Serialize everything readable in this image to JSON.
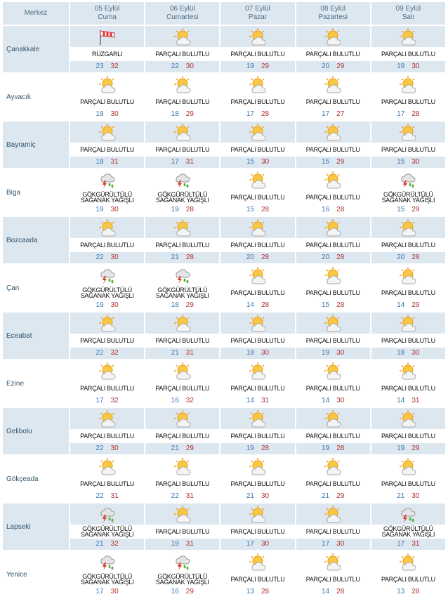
{
  "header": {
    "corner": "Merkez",
    "days": [
      {
        "date": "05 Eylül",
        "day": "Cuma"
      },
      {
        "date": "06 Eylül",
        "day": "Cumartesi"
      },
      {
        "date": "07 Eylül",
        "day": "Pazar"
      },
      {
        "date": "08 Eylül",
        "day": "Pazartesi"
      },
      {
        "date": "09 Eylül",
        "day": "Salı"
      }
    ]
  },
  "rows": [
    {
      "city": "Çanakkale",
      "cells": [
        {
          "condition": "RÜZGARLI",
          "low": 23,
          "high": 32
        },
        {
          "condition": "PARÇALI BULUTLU",
          "low": 22,
          "high": 30
        },
        {
          "condition": "PARÇALI BULUTLU",
          "low": 19,
          "high": 29
        },
        {
          "condition": "PARÇALI BULUTLU",
          "low": 20,
          "high": 29
        },
        {
          "condition": "PARÇALI BULUTLU",
          "low": 19,
          "high": 30
        }
      ]
    },
    {
      "city": "Ayvacık",
      "cells": [
        {
          "condition": "PARÇALI BULUTLU",
          "low": 18,
          "high": 30
        },
        {
          "condition": "PARÇALI BULUTLU",
          "low": 18,
          "high": 29
        },
        {
          "condition": "PARÇALI BULUTLU",
          "low": 17,
          "high": 28
        },
        {
          "condition": "PARÇALI BULUTLU",
          "low": 17,
          "high": 27
        },
        {
          "condition": "PARÇALI BULUTLU",
          "low": 17,
          "high": 28
        }
      ]
    },
    {
      "city": "Bayramiç",
      "cells": [
        {
          "condition": "PARÇALI BULUTLU",
          "low": 18,
          "high": 31
        },
        {
          "condition": "PARÇALI BULUTLU",
          "low": 17,
          "high": 31
        },
        {
          "condition": "PARÇALI BULUTLU",
          "low": 15,
          "high": 30
        },
        {
          "condition": "PARÇALI BULUTLU",
          "low": 15,
          "high": 29
        },
        {
          "condition": "PARÇALI BULUTLU",
          "low": 15,
          "high": 30
        }
      ]
    },
    {
      "city": "Biga",
      "cells": [
        {
          "condition": "GÖKGÜRÜLTÜLÜ SAĞANAK YAĞIŞLI",
          "low": 19,
          "high": 30
        },
        {
          "condition": "GÖKGÜRÜLTÜLÜ SAĞANAK YAĞIŞLI",
          "low": 19,
          "high": 28
        },
        {
          "condition": "PARÇALI BULUTLU",
          "low": 15,
          "high": 28
        },
        {
          "condition": "PARÇALI BULUTLU",
          "low": 16,
          "high": 28
        },
        {
          "condition": "GÖKGÜRÜLTÜLÜ SAĞANAK YAĞIŞLI",
          "low": 15,
          "high": 29
        }
      ]
    },
    {
      "city": "Bozcaada",
      "cells": [
        {
          "condition": "PARÇALI BULUTLU",
          "low": 22,
          "high": 30
        },
        {
          "condition": "PARÇALI BULUTLU",
          "low": 21,
          "high": 28
        },
        {
          "condition": "PARÇALI BULUTLU",
          "low": 20,
          "high": 28
        },
        {
          "condition": "PARÇALI BULUTLU",
          "low": 20,
          "high": 28
        },
        {
          "condition": "PARÇALI BULUTLU",
          "low": 20,
          "high": 28
        }
      ]
    },
    {
      "city": "Çan",
      "cells": [
        {
          "condition": "GÖKGÜRÜLTÜLÜ SAĞANAK YAĞIŞLI",
          "low": 19,
          "high": 30
        },
        {
          "condition": "GÖKGÜRÜLTÜLÜ SAĞANAK YAĞIŞLI",
          "low": 18,
          "high": 29
        },
        {
          "condition": "PARÇALI BULUTLU",
          "low": 14,
          "high": 28
        },
        {
          "condition": "PARÇALI BULUTLU",
          "low": 15,
          "high": 28
        },
        {
          "condition": "PARÇALI BULUTLU",
          "low": 14,
          "high": 29
        }
      ]
    },
    {
      "city": "Eceabat",
      "cells": [
        {
          "condition": "PARÇALI BULUTLU",
          "low": 22,
          "high": 32
        },
        {
          "condition": "PARÇALI BULUTLU",
          "low": 21,
          "high": 31
        },
        {
          "condition": "PARÇALI BULUTLU",
          "low": 18,
          "high": 30
        },
        {
          "condition": "PARÇALI BULUTLU",
          "low": 19,
          "high": 30
        },
        {
          "condition": "PARÇALI BULUTLU",
          "low": 18,
          "high": 30
        }
      ]
    },
    {
      "city": "Ezine",
      "cells": [
        {
          "condition": "PARÇALI BULUTLU",
          "low": 17,
          "high": 32
        },
        {
          "condition": "PARÇALI BULUTLU",
          "low": 16,
          "high": 32
        },
        {
          "condition": "PARÇALI BULUTLU",
          "low": 14,
          "high": 31
        },
        {
          "condition": "PARÇALI BULUTLU",
          "low": 14,
          "high": 30
        },
        {
          "condition": "PARÇALI BULUTLU",
          "low": 14,
          "high": 31
        }
      ]
    },
    {
      "city": "Gelibolu",
      "cells": [
        {
          "condition": "PARÇALI BULUTLU",
          "low": 22,
          "high": 30
        },
        {
          "condition": "PARÇALI BULUTLU",
          "low": 21,
          "high": 29
        },
        {
          "condition": "PARÇALI BULUTLU",
          "low": 19,
          "high": 28
        },
        {
          "condition": "PARÇALI BULUTLU",
          "low": 19,
          "high": 28
        },
        {
          "condition": "PARÇALI BULUTLU",
          "low": 19,
          "high": 29
        }
      ]
    },
    {
      "city": "Gökçeada",
      "cells": [
        {
          "condition": "PARÇALI BULUTLU",
          "low": 22,
          "high": 31
        },
        {
          "condition": "PARÇALI BULUTLU",
          "low": 22,
          "high": 31
        },
        {
          "condition": "PARÇALI BULUTLU",
          "low": 21,
          "high": 30
        },
        {
          "condition": "PARÇALI BULUTLU",
          "low": 21,
          "high": 29
        },
        {
          "condition": "PARÇALI BULUTLU",
          "low": 21,
          "high": 30
        }
      ]
    },
    {
      "city": "Lapseki",
      "cells": [
        {
          "condition": "GÖKGÜRÜLTÜLÜ SAĞANAK YAĞIŞLI",
          "low": 21,
          "high": 32
        },
        {
          "condition": "PARÇALI BULUTLU",
          "low": 19,
          "high": 31
        },
        {
          "condition": "PARÇALI BULUTLU",
          "low": 17,
          "high": 30
        },
        {
          "condition": "PARÇALI BULUTLU",
          "low": 17,
          "high": 30
        },
        {
          "condition": "GÖKGÜRÜLTÜLÜ SAĞANAK YAĞIŞLI",
          "low": 17,
          "high": 31
        }
      ]
    },
    {
      "city": "Yenice",
      "cells": [
        {
          "condition": "GÖKGÜRÜLTÜLÜ SAĞANAK YAĞIŞLI",
          "low": 17,
          "high": 30
        },
        {
          "condition": "GÖKGÜRÜLTÜLÜ SAĞANAK YAĞIŞLI",
          "low": 16,
          "high": 29
        },
        {
          "condition": "PARÇALI BULUTLU",
          "low": 13,
          "high": 28
        },
        {
          "condition": "PARÇALI BULUTLU",
          "low": 14,
          "high": 28
        },
        {
          "condition": "PARÇALI BULUTLU",
          "low": 13,
          "high": 28
        }
      ]
    }
  ]
}
